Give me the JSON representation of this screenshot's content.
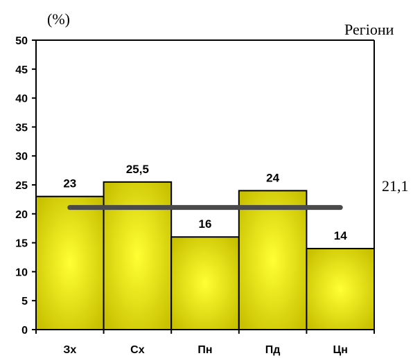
{
  "chart_data": {
    "type": "bar",
    "unit_label": "(%)",
    "series_label": "Регіони",
    "categories": [
      "Зх",
      "Сх",
      "Пн",
      "Пд",
      "Цн"
    ],
    "values": [
      23,
      25.5,
      16,
      24,
      14
    ],
    "value_labels": [
      "23",
      "25,5",
      "16",
      "24",
      "14"
    ],
    "average": 21.1,
    "average_label": "21,1",
    "ylim": [
      0,
      50
    ],
    "yticks": [
      0,
      5,
      10,
      15,
      20,
      25,
      30,
      35,
      40,
      45,
      50
    ],
    "bar_color": "#c8c000",
    "bar_highlight": "#ffff33",
    "average_line_color": "#4a4a4a",
    "grid": false,
    "legend": "none"
  }
}
